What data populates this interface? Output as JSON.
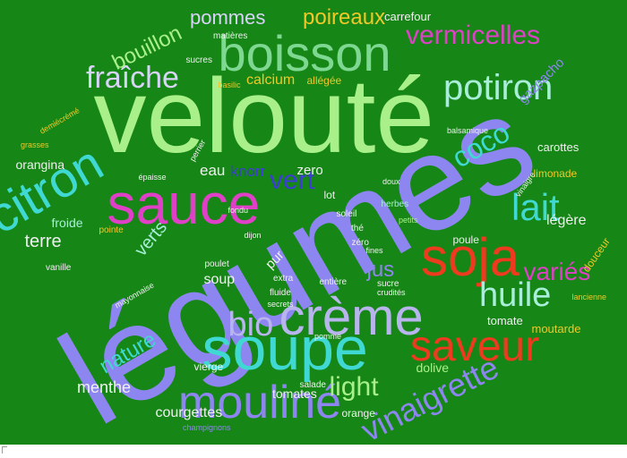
{
  "cloud": {
    "background": "#168716",
    "words": [
      {
        "text": "légumes",
        "color": "#8e86f0",
        "size": "big"
      },
      {
        "text": "velouté",
        "color": "#aaf08a",
        "size": "big"
      },
      {
        "text": "boisson",
        "color": "#7ed892",
        "size": "large"
      },
      {
        "text": "sauce",
        "color": "#e040c8",
        "size": "large"
      },
      {
        "text": "soupe",
        "color": "#3fd8d2",
        "size": "large"
      },
      {
        "text": "soja",
        "color": "#ee3a1e",
        "size": "large"
      },
      {
        "text": "crème",
        "color": "#b8b4ee",
        "size": "large"
      },
      {
        "text": "saveur",
        "color": "#ee3a1e",
        "size": "large"
      },
      {
        "text": "mouliné",
        "color": "#8e86f0",
        "size": "large"
      },
      {
        "text": "potiron",
        "color": "#a8eed8",
        "size": "medium"
      },
      {
        "text": "citron",
        "color": "#3fd8d2",
        "size": "medium"
      },
      {
        "text": "lait",
        "color": "#3fd8d2",
        "size": "medium"
      },
      {
        "text": "vinaigrette",
        "color": "#8e86f0",
        "size": "medium"
      },
      {
        "text": "bio",
        "color": "#b8b4ee",
        "size": "medium"
      },
      {
        "text": "huile",
        "color": "#a8eed8",
        "size": "medium"
      },
      {
        "text": "coco",
        "color": "#3fd8d2",
        "size": "medium"
      },
      {
        "text": "light",
        "color": "#aaf08a",
        "size": "medium"
      },
      {
        "text": "fraîche",
        "color": "#d8d4f8",
        "size": "medium"
      },
      {
        "text": "variés",
        "color": "#e040c8",
        "size": "medium"
      },
      {
        "text": "vermicelles",
        "color": "#e040c8",
        "size": "medium"
      },
      {
        "text": "poireaux",
        "color": "#f0c828",
        "size": "medium"
      },
      {
        "text": "vert",
        "color": "#3c3cd8",
        "size": "medium"
      },
      {
        "text": "nature",
        "color": "#3fd8d2",
        "size": "medium"
      },
      {
        "text": "pommes",
        "color": "#d8d4f8",
        "size": "medium"
      },
      {
        "text": "bouillon",
        "color": "#aaf08a",
        "size": "medium"
      },
      {
        "text": "gazpacho",
        "color": "#8e86f0",
        "size": "small"
      },
      {
        "text": "jus",
        "color": "#8e86f0",
        "size": "small"
      },
      {
        "text": "terre",
        "color": "#f0f0f0",
        "size": "small"
      },
      {
        "text": "verts",
        "color": "#a8eed8",
        "size": "small"
      },
      {
        "text": "menthe",
        "color": "#f0f0f0",
        "size": "small"
      },
      {
        "text": "tomates",
        "color": "#f0f0f0",
        "size": "small"
      },
      {
        "text": "courgettes",
        "color": "#f0f0f0",
        "size": "small"
      },
      {
        "text": "légère",
        "color": "#f0f0f0",
        "size": "small"
      },
      {
        "text": "orangina",
        "color": "#f0f0f0",
        "size": "small"
      },
      {
        "text": "carottes",
        "color": "#f0f0f0",
        "size": "small"
      },
      {
        "text": "limonade",
        "color": "#f0c828",
        "size": "small"
      },
      {
        "text": "calcium",
        "color": "#f0c828",
        "size": "small"
      },
      {
        "text": "eau",
        "color": "#f0f0f0",
        "size": "small"
      },
      {
        "text": "knorr",
        "color": "#3c3cd8",
        "size": "small"
      },
      {
        "text": "zero",
        "color": "#f0f0f0",
        "size": "small"
      },
      {
        "text": "carrefour",
        "color": "#f0f0f0",
        "size": "small"
      },
      {
        "text": "moutarde",
        "color": "#f0c828",
        "size": "small"
      },
      {
        "text": "tomate",
        "color": "#f0f0f0",
        "size": "small"
      },
      {
        "text": "froide",
        "color": "#a8eed8",
        "size": "small"
      },
      {
        "text": "soup",
        "color": "#f0f0f0",
        "size": "small"
      },
      {
        "text": "dolive",
        "color": "#aaf08a",
        "size": "small"
      },
      {
        "text": "pur",
        "color": "#f0f0f0",
        "size": "small"
      },
      {
        "text": "allégée",
        "color": "#f0c828",
        "size": "small"
      },
      {
        "text": "douceur",
        "color": "#f0c828",
        "size": "small"
      },
      {
        "text": "poule",
        "color": "#f0f0f0",
        "size": "small"
      },
      {
        "text": "vierge",
        "color": "#f0f0f0",
        "size": "small"
      },
      {
        "text": "orange",
        "color": "#f0f0f0",
        "size": "small"
      },
      {
        "text": "sucres",
        "color": "#f0f0f0",
        "size": "tiny"
      },
      {
        "text": "matières",
        "color": "#f0f0f0",
        "size": "tiny"
      },
      {
        "text": "basilic",
        "color": "#f0c828",
        "size": "tiny"
      },
      {
        "text": "fluide",
        "color": "#f0f0f0",
        "size": "tiny"
      },
      {
        "text": "extra",
        "color": "#f0f0f0",
        "size": "tiny"
      },
      {
        "text": "entière",
        "color": "#f0f0f0",
        "size": "tiny"
      },
      {
        "text": "thé",
        "color": "#f0f0f0",
        "size": "tiny"
      },
      {
        "text": "zéro",
        "color": "#f0f0f0",
        "size": "tiny"
      },
      {
        "text": "salade",
        "color": "#f0f0f0",
        "size": "tiny"
      },
      {
        "text": "poulet",
        "color": "#f0f0f0",
        "size": "tiny"
      },
      {
        "text": "pointe",
        "color": "#f0c828",
        "size": "tiny"
      },
      {
        "text": "vanille",
        "color": "#f0f0f0",
        "size": "tiny"
      },
      {
        "text": "perrier",
        "color": "#f0f0f0",
        "size": "tiny"
      },
      {
        "text": "fondu",
        "color": "#f0f0f0",
        "size": "tiny"
      },
      {
        "text": "dijon",
        "color": "#f0f0f0",
        "size": "tiny"
      },
      {
        "text": "herbes",
        "color": "#a8eed8",
        "size": "tiny"
      },
      {
        "text": "petits",
        "color": "#aaf08a",
        "size": "tiny"
      },
      {
        "text": "sucre",
        "color": "#f0f0f0",
        "size": "tiny"
      },
      {
        "text": "crudités",
        "color": "#f0f0f0",
        "size": "tiny"
      },
      {
        "text": "champignons",
        "color": "#8e86f0",
        "size": "tiny"
      },
      {
        "text": "lancienne",
        "color": "#f0c828",
        "size": "tiny"
      },
      {
        "text": "soleil",
        "color": "#f0f0f0",
        "size": "tiny"
      },
      {
        "text": "doux",
        "color": "#f0f0f0",
        "size": "tiny"
      },
      {
        "text": "grasses",
        "color": "#f0c828",
        "size": "tiny"
      },
      {
        "text": "secrets",
        "color": "#f0f0f0",
        "size": "tiny"
      },
      {
        "text": "fines",
        "color": "#f0f0f0",
        "size": "tiny"
      },
      {
        "text": "mayonnaise",
        "color": "#f0f0f0",
        "size": "tiny"
      },
      {
        "text": "épaisse",
        "color": "#f0f0f0",
        "size": "tiny"
      },
      {
        "text": "demiécrémé",
        "color": "#f0c828",
        "size": "tiny"
      },
      {
        "text": "vinaigre",
        "color": "#f0f0f0",
        "size": "tiny"
      },
      {
        "text": "balsamique",
        "color": "#f0f0f0",
        "size": "tiny"
      },
      {
        "text": "pomme",
        "color": "#f0f0f0",
        "size": "tiny"
      },
      {
        "text": "lot",
        "color": "#f0f0f0",
        "size": "tiny"
      }
    ]
  }
}
